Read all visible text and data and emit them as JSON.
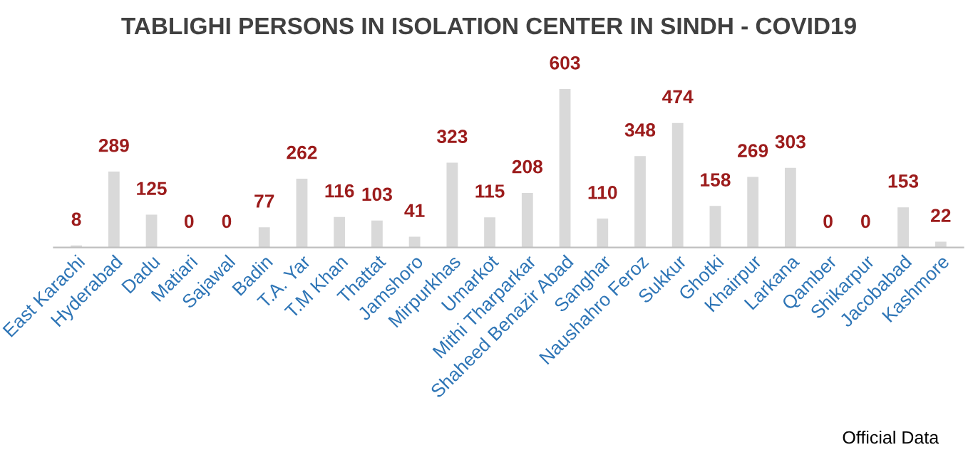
{
  "chart_data": {
    "type": "bar",
    "title": "TABLIGHI PERSONS IN ISOLATION CENTER IN SINDH - COVID19",
    "categories": [
      "East Karachi",
      "Hyderabad",
      "Dadu",
      "Matiari",
      "Sajawal",
      "Badin",
      "T.A. Yar",
      "T.M Khan",
      "Thattat",
      "Jamshoro",
      "Mirpurkhas",
      "Umarkot",
      "Mithi Tharparkar",
      "Shaheed Benazir Abad",
      "Sanghar",
      "Naushahro Feroz",
      "Sukkur",
      "Ghotki",
      "Khairpur",
      "Larkana",
      "Qamber",
      "Shikarpur",
      "Jacobabad",
      "Kashmore"
    ],
    "values": [
      8,
      289,
      125,
      0,
      0,
      77,
      262,
      116,
      103,
      41,
      323,
      115,
      208,
      603,
      110,
      348,
      474,
      158,
      269,
      303,
      0,
      0,
      153,
      22
    ],
    "color": "#d9d9d9",
    "data_labels": true,
    "grid": false,
    "legend": false,
    "tick_labels": "x",
    "annotations": [
      "Official Data"
    ]
  }
}
